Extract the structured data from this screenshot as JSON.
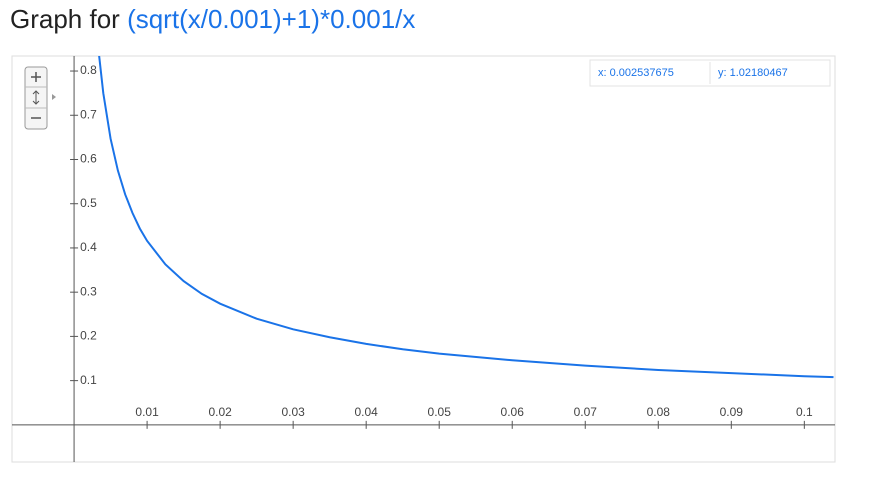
{
  "title_prefix": "Graph for",
  "title_function": "(sqrt(x/0.001)+1)*0.001/x",
  "tooltip": {
    "x": "x: 0.002537675",
    "y": "y: 1.02180467"
  },
  "chart_data": {
    "type": "line",
    "x": [
      0.0033,
      0.004,
      0.005,
      0.006,
      0.007,
      0.008,
      0.009,
      0.01,
      0.0125,
      0.015,
      0.0175,
      0.02,
      0.025,
      0.03,
      0.035,
      0.04,
      0.045,
      0.05,
      0.06,
      0.07,
      0.08,
      0.09,
      0.1,
      0.104
    ],
    "series": [
      {
        "name": "(sqrt(x/0.001)+1)*0.001/x",
        "color": "#1a73e8",
        "values": [
          0.854,
          0.75,
          0.647,
          0.575,
          0.521,
          0.479,
          0.444,
          0.416,
          0.363,
          0.325,
          0.296,
          0.274,
          0.24,
          0.216,
          0.198,
          0.183,
          0.171,
          0.161,
          0.146,
          0.134,
          0.124,
          0.117,
          0.11,
          0.108
        ]
      }
    ],
    "xlim": [
      -0.0085,
      0.1042
    ],
    "ylim": [
      -0.084,
      0.834
    ],
    "xticks": [
      0.01,
      0.02,
      0.03,
      0.04,
      0.05,
      0.06,
      0.07,
      0.08,
      0.09,
      0.1
    ],
    "yticks": [
      0.1,
      0.2,
      0.3,
      0.4,
      0.5,
      0.6,
      0.7,
      0.8
    ]
  }
}
